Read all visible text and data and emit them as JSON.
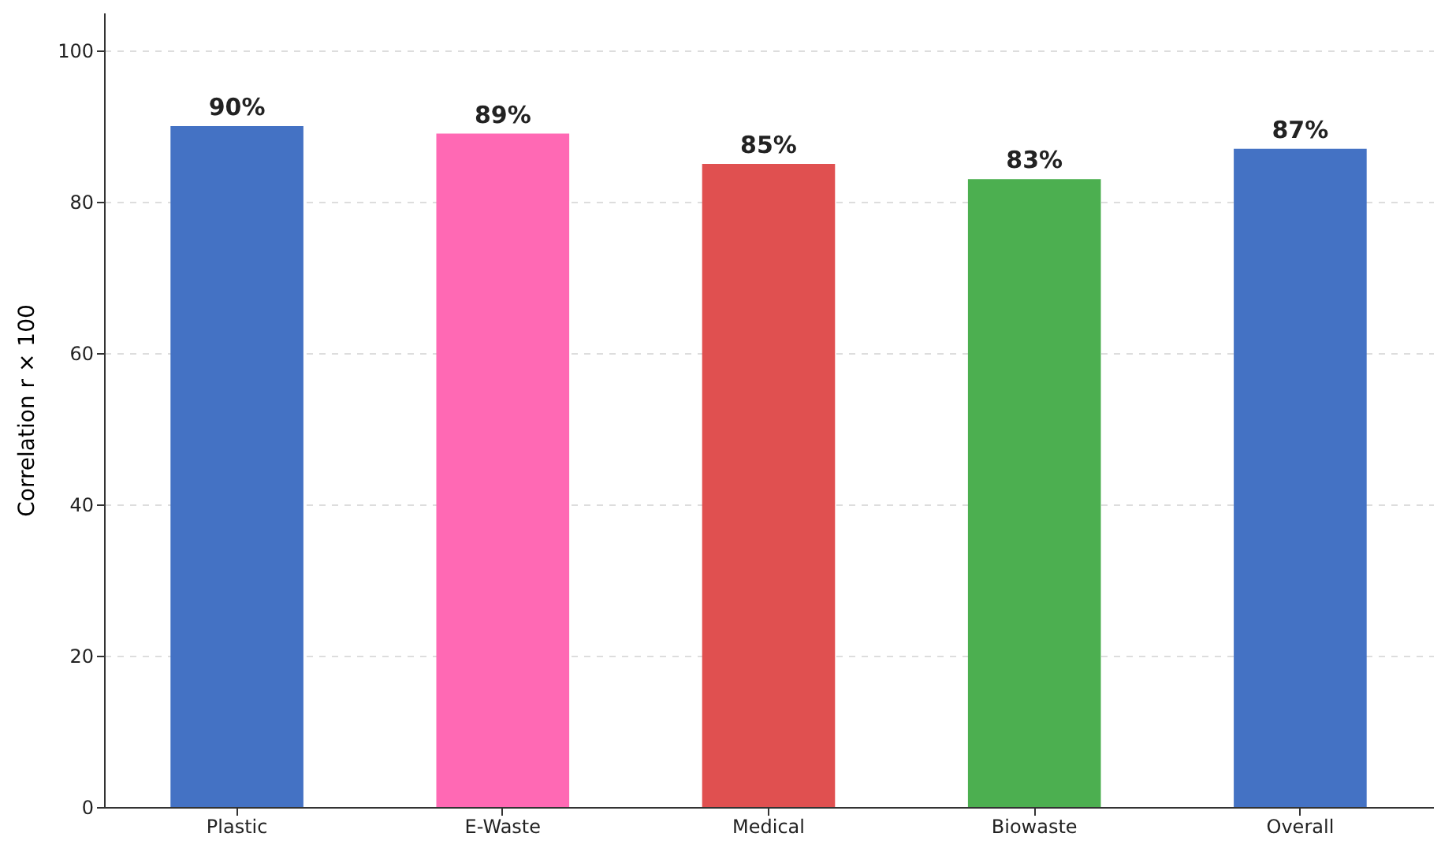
{
  "chart_data": {
    "type": "bar",
    "ylabel": "Correlation r × 100",
    "categories": [
      "Plastic",
      "E-Waste",
      "Medical",
      "Biowaste",
      "Overall"
    ],
    "values": [
      90,
      89,
      85,
      83,
      87
    ],
    "colors": [
      "#4472c4",
      "#ff69b4",
      "#e05050",
      "#4caf50",
      "#4472c4"
    ],
    "value_labels": [
      "90%",
      "89%",
      "85%",
      "83%",
      "87%"
    ],
    "ylim": [
      0,
      105
    ],
    "yticks": [
      0,
      20,
      40,
      60,
      80,
      100
    ],
    "grid": "y"
  }
}
